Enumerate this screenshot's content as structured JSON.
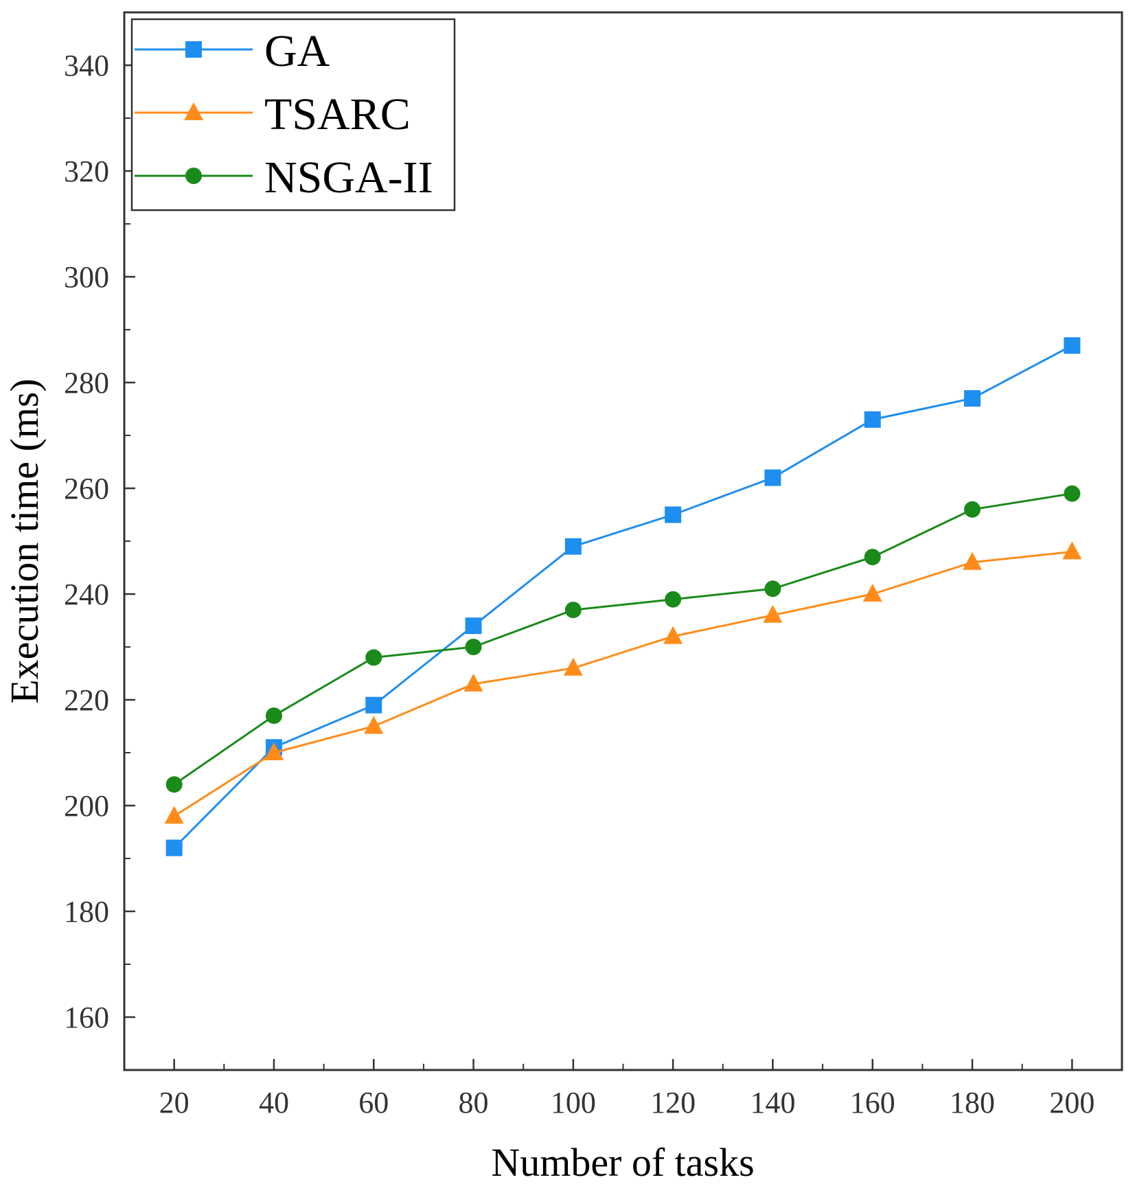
{
  "chart_data": {
    "type": "line",
    "title": "",
    "xlabel": "Number of tasks",
    "ylabel": "Execution time (ms)",
    "x": [
      20,
      40,
      60,
      80,
      100,
      120,
      140,
      160,
      180,
      200
    ],
    "xticks": [
      "20",
      "40",
      "60",
      "80",
      "100",
      "120",
      "140",
      "160",
      "180",
      "200"
    ],
    "xlim": [
      10,
      210
    ],
    "yticks": [
      160,
      180,
      200,
      220,
      240,
      260,
      280,
      300,
      320,
      340
    ],
    "ylim": [
      150,
      350
    ],
    "grid": false,
    "legend_position": "top-left",
    "series": [
      {
        "name": "GA",
        "color": "#1f8ef1",
        "marker": "square",
        "values": [
          192,
          211,
          219,
          234,
          249,
          255,
          262,
          273,
          277,
          287
        ]
      },
      {
        "name": "TSARC",
        "color": "#ff8c1a",
        "marker": "triangle",
        "values": [
          198,
          210,
          215,
          223,
          226,
          232,
          236,
          240,
          246,
          248
        ]
      },
      {
        "name": "NSGA-II",
        "color": "#1a8a1a",
        "marker": "circle",
        "values": [
          204,
          217,
          228,
          230,
          237,
          239,
          241,
          247,
          256,
          259
        ]
      }
    ]
  }
}
